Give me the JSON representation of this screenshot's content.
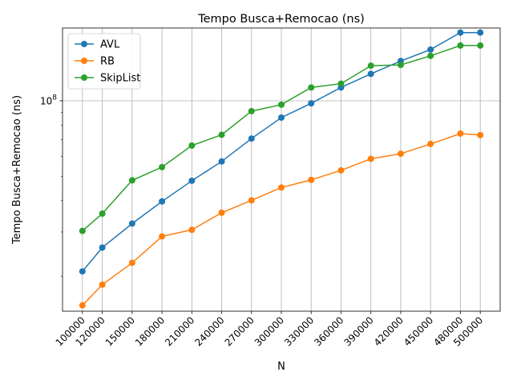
{
  "chart_data": {
    "type": "line",
    "title": "Tempo Busca+Remocao (ns)",
    "xlabel": "N",
    "ylabel": "Tempo Busca+Remocao (ns)",
    "yscale": "log",
    "ylim": [
      14500000,
      195000000
    ],
    "y_ticks": [
      {
        "value": 100000000,
        "base": "10",
        "exp": "8"
      }
    ],
    "grid": true,
    "legend_position": "upper-left",
    "x": [
      100000,
      120000,
      150000,
      180000,
      210000,
      240000,
      270000,
      300000,
      330000,
      360000,
      390000,
      420000,
      450000,
      480000,
      500000
    ],
    "x_tick_labels": [
      "100000",
      "120000",
      "150000",
      "180000",
      "210000",
      "240000",
      "270000",
      "300000",
      "330000",
      "360000",
      "390000",
      "420000",
      "450000",
      "480000",
      "500000"
    ],
    "series": [
      {
        "name": "AVL",
        "color": "#1f77b4",
        "values": [
          20900000,
          26000000,
          32400000,
          39700000,
          48000000,
          57300000,
          70700000,
          85700000,
          97700000,
          113000000,
          128000000,
          144000000,
          160000000,
          187000000,
          187000000
        ]
      },
      {
        "name": "RB",
        "color": "#ff7f0e",
        "values": [
          15300000,
          18500000,
          22600000,
          28800000,
          30600000,
          35800000,
          40100000,
          45100000,
          48400000,
          52800000,
          58700000,
          61500000,
          67300000,
          74000000,
          73000000
        ]
      },
      {
        "name": "SkipList",
        "color": "#2ca02c",
        "values": [
          30300000,
          35500000,
          48200000,
          54400000,
          66300000,
          73200000,
          90900000,
          96500000,
          113000000,
          117000000,
          138000000,
          139000000,
          151000000,
          166000000,
          166000000
        ]
      }
    ]
  }
}
